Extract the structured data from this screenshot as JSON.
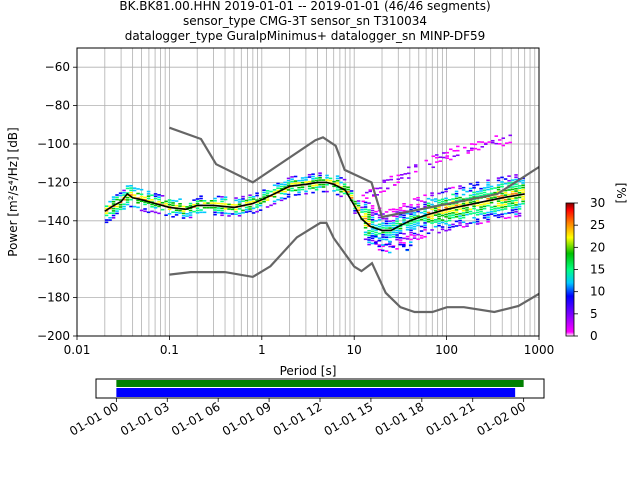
{
  "chart_data": [
    {
      "type": "heatmap",
      "title_lines": [
        "BK.BK81.00.HHN   2019-01-01 -- 2019-01-01  (46/46 segments)",
        "sensor_type CMG-3T sensor_sn T310034",
        "datalogger_type GuralpMinimus+ datalogger_sn MINP-DF59"
      ],
      "xlabel": "Period [s]",
      "ylabel": "Power [m²/s⁴/Hz] [dB]",
      "xscale": "log",
      "xlim": [
        0.01,
        1000
      ],
      "ylim": [
        -200,
        -50
      ],
      "x_ticks": [
        0.01,
        0.1,
        1,
        10,
        100,
        1000
      ],
      "x_tick_labels": [
        "0.01",
        "0.1",
        "1",
        "10",
        "100",
        "1000"
      ],
      "y_ticks": [
        -200,
        -180,
        -160,
        -140,
        -120,
        -100,
        -80,
        -60
      ],
      "y_tick_labels": [
        "−200",
        "−180",
        "−160",
        "−140",
        "−120",
        "−100",
        "−80",
        "−60"
      ],
      "grid": true,
      "colorbar": {
        "label": "[%]",
        "range": [
          0,
          30
        ],
        "ticks": [
          0,
          5,
          10,
          15,
          20,
          25,
          30
        ],
        "tick_labels": [
          "0",
          "5",
          "10",
          "15",
          "20",
          "25",
          "30"
        ],
        "colormap": [
          "#ffffff",
          "#ff00ff",
          "#8800ff",
          "#0000ff",
          "#00c8ff",
          "#00ff80",
          "#00c000",
          "#ffff00",
          "#ff8000",
          "#ff0000",
          "#800000"
        ]
      },
      "noise_model_color": "#666666",
      "mean_line_color": "#000000",
      "high_noise_model": {
        "x": [
          0.1,
          0.22,
          0.32,
          0.8,
          3.8,
          4.6,
          6.3,
          7.9,
          15.4,
          20,
          354.8,
          1000
        ],
        "y": [
          -91.5,
          -97.4,
          -110.5,
          -120,
          -98,
          -96.5,
          -101,
          -113.5,
          -120,
          -138,
          -126,
          -112
        ]
      },
      "low_noise_model": {
        "x": [
          0.1,
          0.17,
          0.4,
          0.8,
          1.24,
          2.4,
          4.3,
          5,
          6,
          10,
          12,
          15.6,
          21.9,
          31.6,
          45,
          70,
          101,
          154,
          328,
          600,
          1000
        ],
        "y": [
          -168,
          -166.7,
          -166.7,
          -169.2,
          -163.7,
          -148.6,
          -141.1,
          -141.1,
          -149,
          -163.8,
          -166.2,
          -162.1,
          -177.5,
          -185,
          -187.5,
          -187.5,
          -185,
          -185,
          -187.5,
          -184.4,
          -178
        ]
      },
      "mean_curve": {
        "x": [
          0.02,
          0.025,
          0.03,
          0.035,
          0.04,
          0.05,
          0.07,
          0.1,
          0.15,
          0.2,
          0.3,
          0.5,
          0.8,
          1,
          1.5,
          2,
          3,
          4,
          5,
          6,
          8,
          10,
          12,
          15,
          20,
          25,
          30,
          40,
          60,
          100,
          200,
          400,
          700
        ],
        "y": [
          -135,
          -132,
          -130,
          -126,
          -128,
          -129,
          -131,
          -133,
          -134,
          -132,
          -132,
          -133,
          -131,
          -129,
          -125,
          -122,
          -121,
          -120,
          -120,
          -121,
          -124,
          -132,
          -139,
          -143,
          -145,
          -145,
          -143,
          -140,
          -137,
          -134,
          -131,
          -128,
          -126
        ]
      },
      "upper_spray": {
        "x": [
          12,
          20,
          30,
          50,
          100,
          200,
          500
        ],
        "y": [
          -129,
          -122,
          -117,
          -112,
          -106,
          -101,
          -97
        ]
      },
      "low_spray": {
        "x": [
          15,
          20,
          30,
          40
        ],
        "y": [
          -150,
          -153,
          -155,
          -152
        ]
      }
    },
    {
      "type": "timeline",
      "x_tick_labels": [
        "01-01 00",
        "01-01 03",
        "01-01 06",
        "01-01 09",
        "01-01 12",
        "01-01 15",
        "01-01 18",
        "01-01 21",
        "01-02 00"
      ],
      "x_ticks_hours": [
        0,
        3,
        6,
        9,
        12,
        15,
        18,
        21,
        24
      ],
      "xlim_hours": [
        -1.2,
        25.2
      ],
      "bars": [
        {
          "start_hours": 0,
          "end_hours": 24,
          "color": "#008000"
        },
        {
          "start_hours": 0,
          "end_hours": 23.5,
          "color": "#0000ff"
        }
      ]
    }
  ]
}
